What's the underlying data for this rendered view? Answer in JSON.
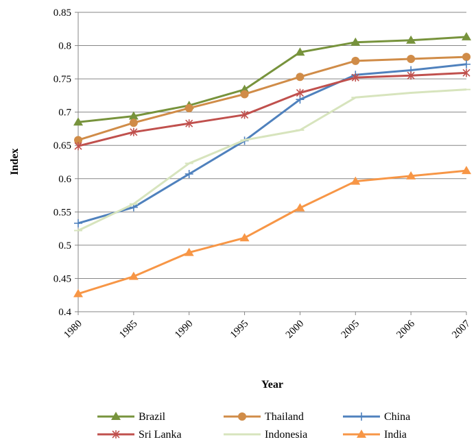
{
  "chart_data": {
    "type": "line",
    "title": "",
    "xlabel": "Year",
    "ylabel": "Index",
    "categories": [
      "1980",
      "1985",
      "1990",
      "1995",
      "2000",
      "2005",
      "2006",
      "2007"
    ],
    "ylim": [
      0.4,
      0.85
    ],
    "yticks": [
      "0.4",
      "0.45",
      "0.5",
      "0.55",
      "0.6",
      "0.65",
      "0.7",
      "0.75",
      "0.8",
      "0.85"
    ],
    "grid": "horizontal",
    "legend_position": "bottom",
    "series": [
      {
        "name": "Brazil",
        "color": "#77933C",
        "marker": "triangle",
        "values": [
          0.685,
          0.694,
          0.71,
          0.734,
          0.79,
          0.805,
          0.808,
          0.813
        ]
      },
      {
        "name": "Thailand",
        "color": "#D08C48",
        "marker": "circle",
        "values": [
          0.658,
          0.684,
          0.706,
          0.727,
          0.753,
          0.777,
          0.78,
          0.783
        ]
      },
      {
        "name": "China",
        "color": "#4F81BD",
        "marker": "plus",
        "values": [
          0.533,
          0.557,
          0.607,
          0.657,
          0.719,
          0.756,
          0.763,
          0.772
        ]
      },
      {
        "name": "Sri Lanka",
        "color": "#C0504D",
        "marker": "star",
        "values": [
          0.649,
          0.67,
          0.683,
          0.696,
          0.729,
          0.752,
          0.755,
          0.759
        ]
      },
      {
        "name": "Indonesia",
        "color": "#D7E4BD",
        "marker": "dash",
        "values": [
          0.522,
          0.562,
          0.623,
          0.658,
          0.673,
          0.722,
          0.729,
          0.734
        ]
      },
      {
        "name": "India",
        "color": "#F79646",
        "marker": "triangle",
        "values": [
          0.427,
          0.453,
          0.489,
          0.511,
          0.556,
          0.596,
          0.604,
          0.612
        ]
      }
    ]
  }
}
